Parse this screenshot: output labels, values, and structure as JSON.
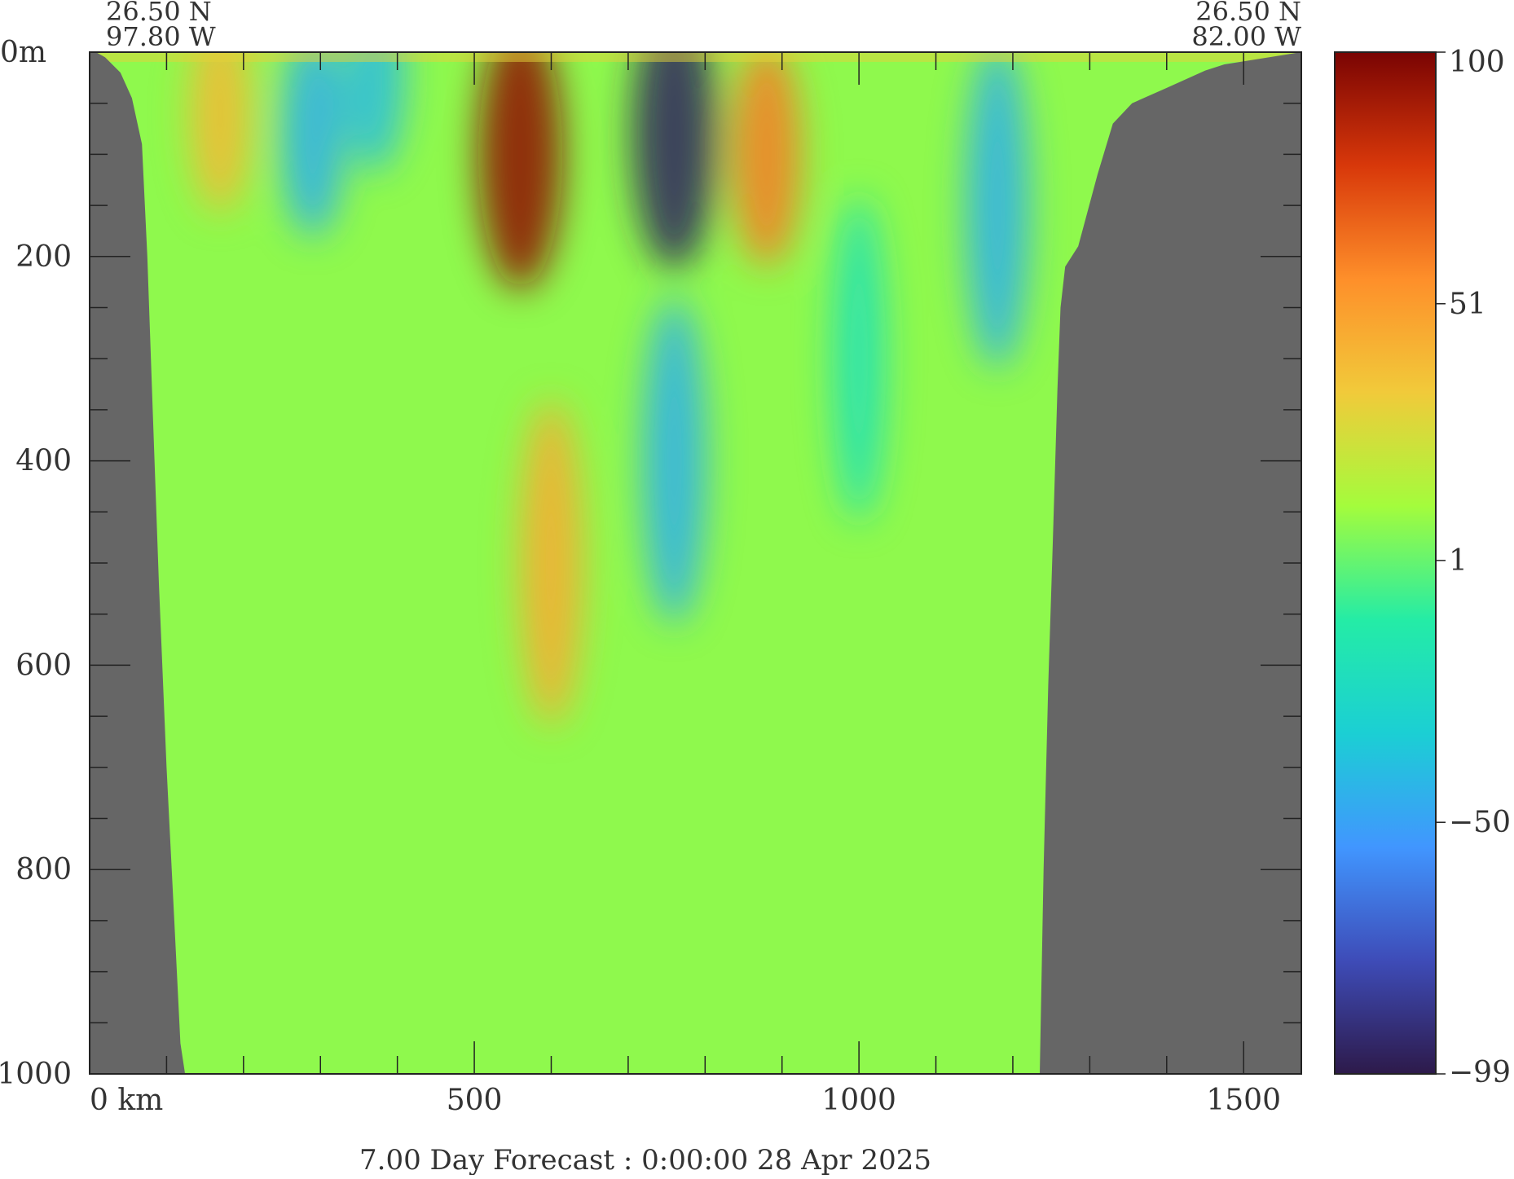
{
  "chart_data": {
    "type": "heatmap",
    "section": {
      "start": {
        "lat": "26.50 N",
        "lon": "97.80 W"
      },
      "end": {
        "lat": "26.50 N",
        "lon": "82.00 W"
      }
    },
    "x_axis": {
      "range_km": [
        0,
        1575
      ],
      "ticks": [
        0,
        500,
        1000,
        1500
      ],
      "tick_labels": [
        "0 km",
        "500",
        "1000",
        "1500"
      ],
      "minor_step": 100
    },
    "y_axis": {
      "range_m": [
        0,
        1000
      ],
      "inverted": true,
      "ticks": [
        0,
        200,
        400,
        600,
        800,
        1000
      ],
      "tick_labels": [
        "0m",
        "200",
        "400",
        "600",
        "800",
        "1000"
      ],
      "minor_step": 50
    },
    "colorbar": {
      "min": -99,
      "max": 100,
      "tick_values": [
        100,
        51,
        1,
        -50,
        -99
      ],
      "tick_labels": [
        "100",
        "51",
        "1",
        "−50",
        "−99"
      ],
      "colormap": [
        "#2d1a4a",
        "#3e4cb8",
        "#4196ff",
        "#1bcfd4",
        "#24eca6",
        "#a4fc3c",
        "#f1ca3a",
        "#fe8f2a",
        "#d8380a",
        "#7a0403"
      ]
    },
    "bathymetry_km_m": {
      "left_wall": [
        [
          0,
          0
        ],
        [
          8,
          0
        ],
        [
          20,
          5
        ],
        [
          40,
          20
        ],
        [
          55,
          45
        ],
        [
          68,
          90
        ],
        [
          75,
          200
        ],
        [
          82,
          350
        ],
        [
          90,
          520
        ],
        [
          100,
          700
        ],
        [
          110,
          850
        ],
        [
          118,
          970
        ],
        [
          124,
          1000
        ]
      ],
      "right_wall": [
        [
          1235,
          1000
        ],
        [
          1240,
          800
        ],
        [
          1246,
          620
        ],
        [
          1252,
          480
        ],
        [
          1258,
          330
        ],
        [
          1262,
          250
        ],
        [
          1268,
          210
        ],
        [
          1285,
          190
        ],
        [
          1310,
          120
        ],
        [
          1330,
          70
        ],
        [
          1355,
          50
        ],
        [
          1400,
          35
        ],
        [
          1450,
          18
        ],
        [
          1475,
          12
        ],
        [
          1575,
          0
        ]
      ]
    },
    "field_features": [
      {
        "x_km": 170,
        "depth_m": 60,
        "value": 40
      },
      {
        "x_km": 290,
        "depth_m": 80,
        "value": -45
      },
      {
        "x_km": 370,
        "depth_m": 20,
        "value": -40
      },
      {
        "x_km": 560,
        "depth_m": 100,
        "value": 95
      },
      {
        "x_km": 600,
        "depth_m": 500,
        "value": 45
      },
      {
        "x_km": 760,
        "depth_m": 80,
        "value": -95
      },
      {
        "x_km": 760,
        "depth_m": 400,
        "value": -45
      },
      {
        "x_km": 880,
        "depth_m": 100,
        "value": 60
      },
      {
        "x_km": 1000,
        "depth_m": 300,
        "value": -20
      },
      {
        "x_km": 1180,
        "depth_m": 150,
        "value": -45
      }
    ],
    "caption": "7.00 Day Forecast :  0:00:00  28 Apr 2025"
  }
}
